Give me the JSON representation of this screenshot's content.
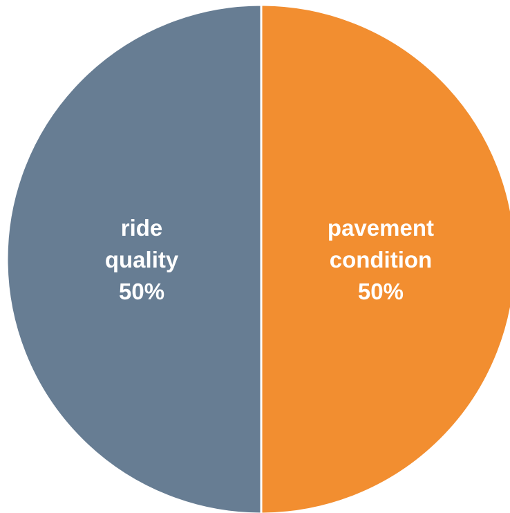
{
  "chart_data": {
    "type": "pie",
    "title": "",
    "slices": [
      {
        "label_lines": [
          "pavement",
          "condition"
        ],
        "value": 50,
        "value_label": "50%",
        "color": "#F28E30"
      },
      {
        "label_lines": [
          "ride",
          "quality"
        ],
        "value": 50,
        "value_label": "50%",
        "color": "#677D93"
      }
    ],
    "legend": "none",
    "slice_border_color": "#ffffff"
  }
}
